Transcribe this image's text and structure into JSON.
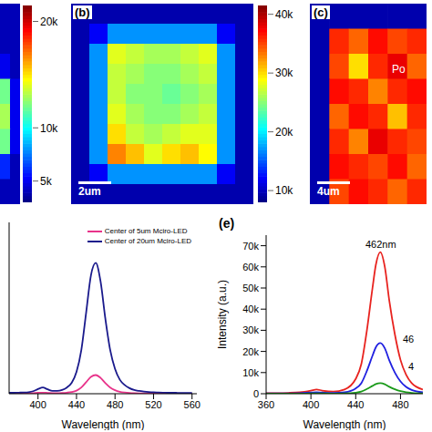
{
  "chart_data": [
    {
      "type": "heatmap",
      "tick_labels": false,
      "cells": [
        [
          4000,
          4000
        ],
        [
          4000,
          4000
        ],
        [
          5000,
          4000
        ],
        [
          12000,
          5000
        ],
        [
          13000,
          5000
        ],
        [
          12000,
          5000
        ],
        [
          6000,
          4000
        ],
        [
          4000,
          4000
        ]
      ],
      "colorbar_range": [
        3000,
        21500
      ],
      "colorbar_ticks": [
        {
          "value": 5000,
          "label": "5k"
        },
        {
          "value": 10000,
          "label": "10k"
        },
        {
          "value": 20000,
          "label": "20k"
        }
      ]
    },
    {
      "type": "heatmap",
      "tick_labels": false,
      "panel_label": "(b)",
      "annotations": [
        "2um"
      ],
      "cells": [
        [
          9500,
          9500,
          9500,
          9500,
          9500,
          9500,
          9500,
          9500,
          9500,
          9500
        ],
        [
          9500,
          12000,
          17000,
          17000,
          17000,
          17000,
          17000,
          17000,
          12000,
          9500
        ],
        [
          9500,
          17000,
          28000,
          27000,
          26000,
          26000,
          27000,
          28000,
          17000,
          9500
        ],
        [
          9500,
          17000,
          27000,
          26000,
          25000,
          25000,
          26000,
          27000,
          17000,
          9500
        ],
        [
          9500,
          17000,
          27000,
          25000,
          25000,
          24000,
          25000,
          26000,
          17000,
          9500
        ],
        [
          9500,
          17000,
          28000,
          26000,
          25000,
          25000,
          26000,
          27000,
          17000,
          9500
        ],
        [
          9500,
          17000,
          30000,
          27000,
          26000,
          27000,
          28000,
          28000,
          17000,
          9500
        ],
        [
          9500,
          17000,
          33000,
          31000,
          28000,
          30000,
          31000,
          29000,
          17000,
          9500
        ],
        [
          9500,
          12000,
          17000,
          17000,
          17000,
          17000,
          17000,
          17000,
          12000,
          9500
        ],
        [
          9500,
          9500,
          9500,
          9500,
          9500,
          9500,
          9500,
          9500,
          9500,
          9500
        ]
      ],
      "colorbar_range": [
        8000,
        41500
      ],
      "colorbar_ticks": [
        {
          "value": 10000,
          "label": "10k"
        },
        {
          "value": 20000,
          "label": "20k"
        },
        {
          "value": 30000,
          "label": "30k"
        },
        {
          "value": 40000,
          "label": "40k"
        }
      ]
    },
    {
      "type": "heatmap",
      "tick_labels": false,
      "panel_label": "(c)",
      "annotations": [
        "4um",
        "Po"
      ],
      "cells": [
        [
          9500,
          9500,
          9500,
          9500,
          9500,
          9500
        ],
        [
          9500,
          36000,
          34000,
          37000,
          35000,
          36000
        ],
        [
          9500,
          35000,
          30000,
          36000,
          38000,
          34000
        ],
        [
          9500,
          37000,
          36000,
          33000,
          36000,
          37000
        ],
        [
          9500,
          34000,
          37000,
          36000,
          31000,
          36000
        ],
        [
          9500,
          36000,
          33000,
          38000,
          36000,
          35000
        ],
        [
          9500,
          37000,
          36000,
          35000,
          37000,
          34000
        ],
        [
          9500,
          35000,
          37000,
          36000,
          34000,
          36000
        ]
      ],
      "color_range": [
        8000,
        41500
      ]
    },
    {
      "type": "line",
      "x_label": "Wavelength (nm)",
      "tick_labels": "x",
      "legend": "upper right",
      "x": [
        370,
        375,
        380,
        385,
        390,
        395,
        400,
        405,
        410,
        415,
        420,
        425,
        430,
        435,
        440,
        445,
        450,
        455,
        460,
        465,
        470,
        475,
        480,
        485,
        490,
        495,
        500,
        505,
        510,
        515,
        520,
        525,
        530,
        535,
        540,
        545,
        550,
        555,
        560
      ],
      "xlim": [
        370,
        565
      ],
      "xticks": [
        400,
        440,
        480,
        520,
        560
      ],
      "ylim": [
        0,
        55000
      ],
      "series": [
        {
          "name": "Center of 5um Mciro-LED",
          "color": "#e8338a",
          "values": [
            100,
            100,
            100,
            120,
            150,
            200,
            300,
            350,
            280,
            200,
            200,
            250,
            350,
            550,
            1000,
            2000,
            3700,
            5400,
            6000,
            5100,
            3400,
            2000,
            1150,
            650,
            400,
            260,
            180,
            130,
            100,
            90,
            80,
            70,
            60,
            60,
            60,
            55,
            50,
            50,
            50
          ]
        },
        {
          "name": "Center of 20um Mciro-LED",
          "color": "#1a1a8c",
          "values": [
            300,
            300,
            350,
            400,
            500,
            800,
            1500,
            2000,
            1400,
            900,
            900,
            1200,
            2000,
            3500,
            7000,
            14000,
            26000,
            38000,
            42000,
            36000,
            24000,
            14000,
            8000,
            4500,
            2800,
            1800,
            1200,
            900,
            700,
            550,
            450,
            400,
            350,
            300,
            300,
            280,
            260,
            250,
            250
          ]
        }
      ]
    },
    {
      "type": "line",
      "panel_label": "(e)",
      "x_label": "Wavelength (nm)",
      "y_label": "Intensity (a.u.)",
      "annotations": [
        "462nm",
        "46",
        "4"
      ],
      "x": [
        360,
        370,
        380,
        390,
        400,
        405,
        410,
        420,
        430,
        440,
        445,
        450,
        455,
        458,
        462,
        466,
        470,
        475,
        480,
        485,
        490,
        500
      ],
      "xlim": [
        360,
        500
      ],
      "xticks": [
        360,
        400,
        440,
        480
      ],
      "ylim": [
        0,
        75000
      ],
      "yticks": [
        0,
        {
          "value": 10000,
          "label": "10k"
        },
        {
          "value": 20000,
          "label": "20k"
        },
        {
          "value": 30000,
          "label": "30k"
        },
        {
          "value": 40000,
          "label": "40k"
        },
        {
          "value": 50000,
          "label": "50k"
        },
        {
          "value": 60000,
          "label": "60k"
        },
        {
          "value": 70000,
          "label": "70k"
        }
      ],
      "series": [
        {
          "color": "#e8231f",
          "values": [
            300,
            300,
            400,
            700,
            1500,
            2000,
            1500,
            1000,
            2000,
            7000,
            14000,
            30000,
            50000,
            61000,
            67000,
            60000,
            44000,
            28000,
            16000,
            9000,
            5000,
            2000
          ]
        },
        {
          "color": "#2020e0",
          "values": [
            100,
            100,
            150,
            250,
            550,
            700,
            550,
            350,
            700,
            2500,
            5000,
            10800,
            18000,
            22000,
            24000,
            21500,
            15800,
            10000,
            5800,
            3200,
            1800,
            700
          ]
        },
        {
          "color": "#1a9a1a",
          "values": [
            30,
            30,
            40,
            60,
            120,
            150,
            120,
            80,
            150,
            520,
            1050,
            2250,
            3700,
            4550,
            5000,
            4500,
            3300,
            2100,
            1200,
            680,
            380,
            150
          ]
        }
      ]
    }
  ]
}
